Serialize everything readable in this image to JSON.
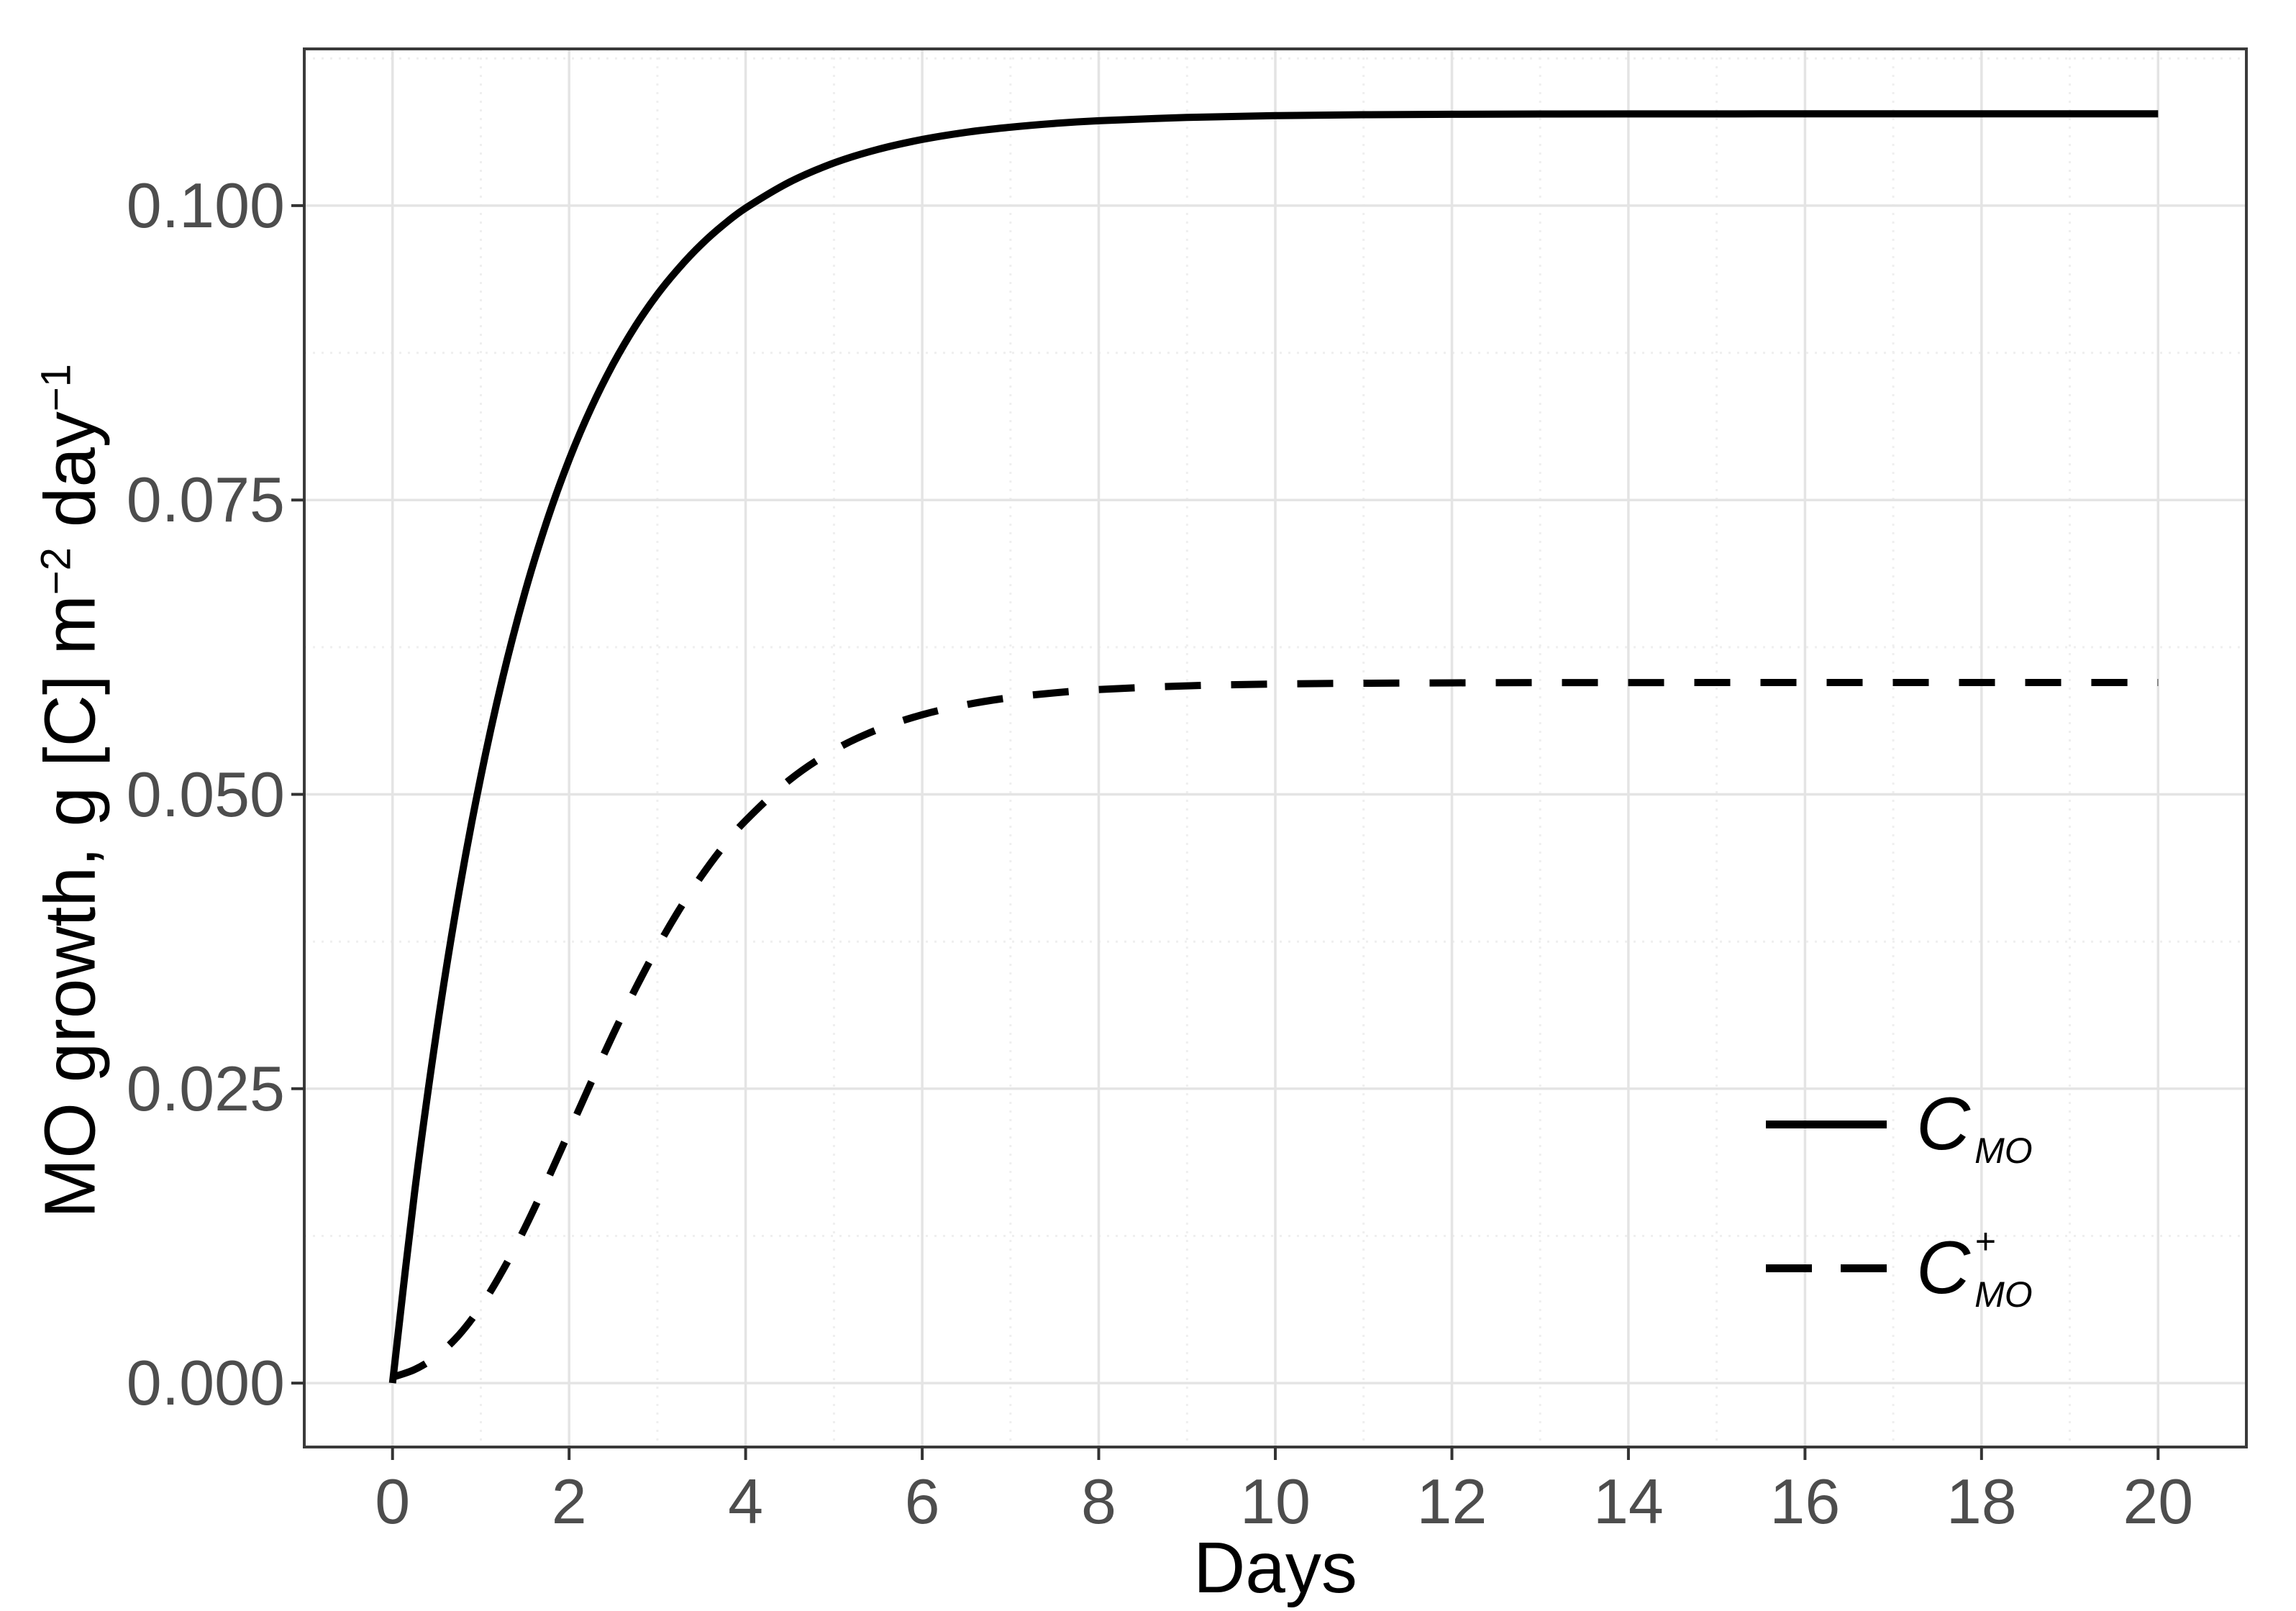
{
  "chart_data": {
    "type": "line",
    "title": "",
    "xlabel": "Days",
    "ylabel": "MO growth, g [C] m−2 day−1",
    "x_ticks": [
      0,
      2,
      4,
      6,
      8,
      10,
      12,
      14,
      16,
      18,
      20
    ],
    "x_tick_labels": [
      "0",
      "2",
      "4",
      "6",
      "8",
      "10",
      "12",
      "14",
      "16",
      "18",
      "20"
    ],
    "x_minor_ticks": [
      1,
      3,
      5,
      7,
      9,
      11,
      13,
      15,
      17,
      19
    ],
    "y_ticks": [
      0,
      0.025,
      0.05,
      0.075,
      0.1
    ],
    "y_tick_labels": [
      "0.000",
      "0.025",
      "0.050",
      "0.075",
      "0.100"
    ],
    "y_minor_ticks": [
      0.0125,
      0.0375,
      0.0625,
      0.0875,
      0.1125
    ],
    "xlim_data": [
      0,
      20
    ],
    "ylim_data": [
      0,
      0.1078
    ],
    "xlim_panel": [
      -1,
      21
    ],
    "ylim_panel": [
      -0.00543,
      0.11331
    ],
    "grid": {
      "major": "solid",
      "minor": "dotted"
    },
    "legend_position": "inside-bottom-right",
    "x_days": [
      0,
      0.25,
      0.5,
      0.75,
      1,
      1.25,
      1.5,
      1.75,
      2,
      2.25,
      2.5,
      2.75,
      3,
      3.25,
      3.5,
      3.75,
      4,
      4.5,
      5,
      5.5,
      6,
      6.5,
      7,
      7.5,
      8,
      9,
      10,
      11,
      12,
      13,
      14,
      15,
      16,
      17,
      18,
      19,
      20
    ],
    "series": [
      {
        "name": "C_MO",
        "line_style": "solid",
        "plateau": 0.1078,
        "values": [
          0,
          0.01621,
          0.02991,
          0.04159,
          0.05152,
          0.05997,
          0.06715,
          0.07324,
          0.07842,
          0.08282,
          0.08656,
          0.08975,
          0.09246,
          0.09475,
          0.09672,
          0.09838,
          0.09979,
          0.10201,
          0.10362,
          0.10478,
          0.10562,
          0.10623,
          0.10666,
          0.10698,
          0.10721,
          0.10749,
          0.10764,
          0.10772,
          0.10776,
          0.10778,
          0.10779,
          0.10779,
          0.1078,
          0.1078,
          0.1078,
          0.1078,
          0.1078
        ]
      },
      {
        "name": "C_MO_plus",
        "line_style": "dashed",
        "plateau": 0.0595,
        "values": [
          0.0005,
          0.00115,
          0.0023,
          0.00407,
          0.00651,
          0.00959,
          0.01319,
          0.01717,
          0.02135,
          0.02555,
          0.02963,
          0.03347,
          0.03702,
          0.04023,
          0.04308,
          0.04559,
          0.04777,
          0.05124,
          0.05375,
          0.05552,
          0.05676,
          0.05762,
          0.05822,
          0.05862,
          0.0589,
          0.05922,
          0.05937,
          0.05944,
          0.05947,
          0.05949,
          0.05949,
          0.0595,
          0.0595,
          0.0595,
          0.0595,
          0.0595,
          0.0595
        ]
      }
    ]
  },
  "ui": {
    "x_title": "Days",
    "y_title_pre": "MO growth, g [C] m",
    "y_sup1": "−2",
    "y_title_mid": " day",
    "y_sup2": "−1"
  },
  "legend": {
    "items": [
      {
        "main": "C",
        "sub": "MO",
        "sup": "",
        "key": "solid-line"
      },
      {
        "main": "C",
        "sub": "MO",
        "sup": "+",
        "key": "dashed-line"
      }
    ]
  },
  "colors": {
    "curve": "#000000",
    "tick_text": "#4d4d4d",
    "axis_title_text": "#000000",
    "grid_major": "#e4e4e4",
    "grid_minor": "#efefef",
    "panel_border": "#3a3a3a",
    "tick_mark": "#333333",
    "background": "#ffffff"
  }
}
